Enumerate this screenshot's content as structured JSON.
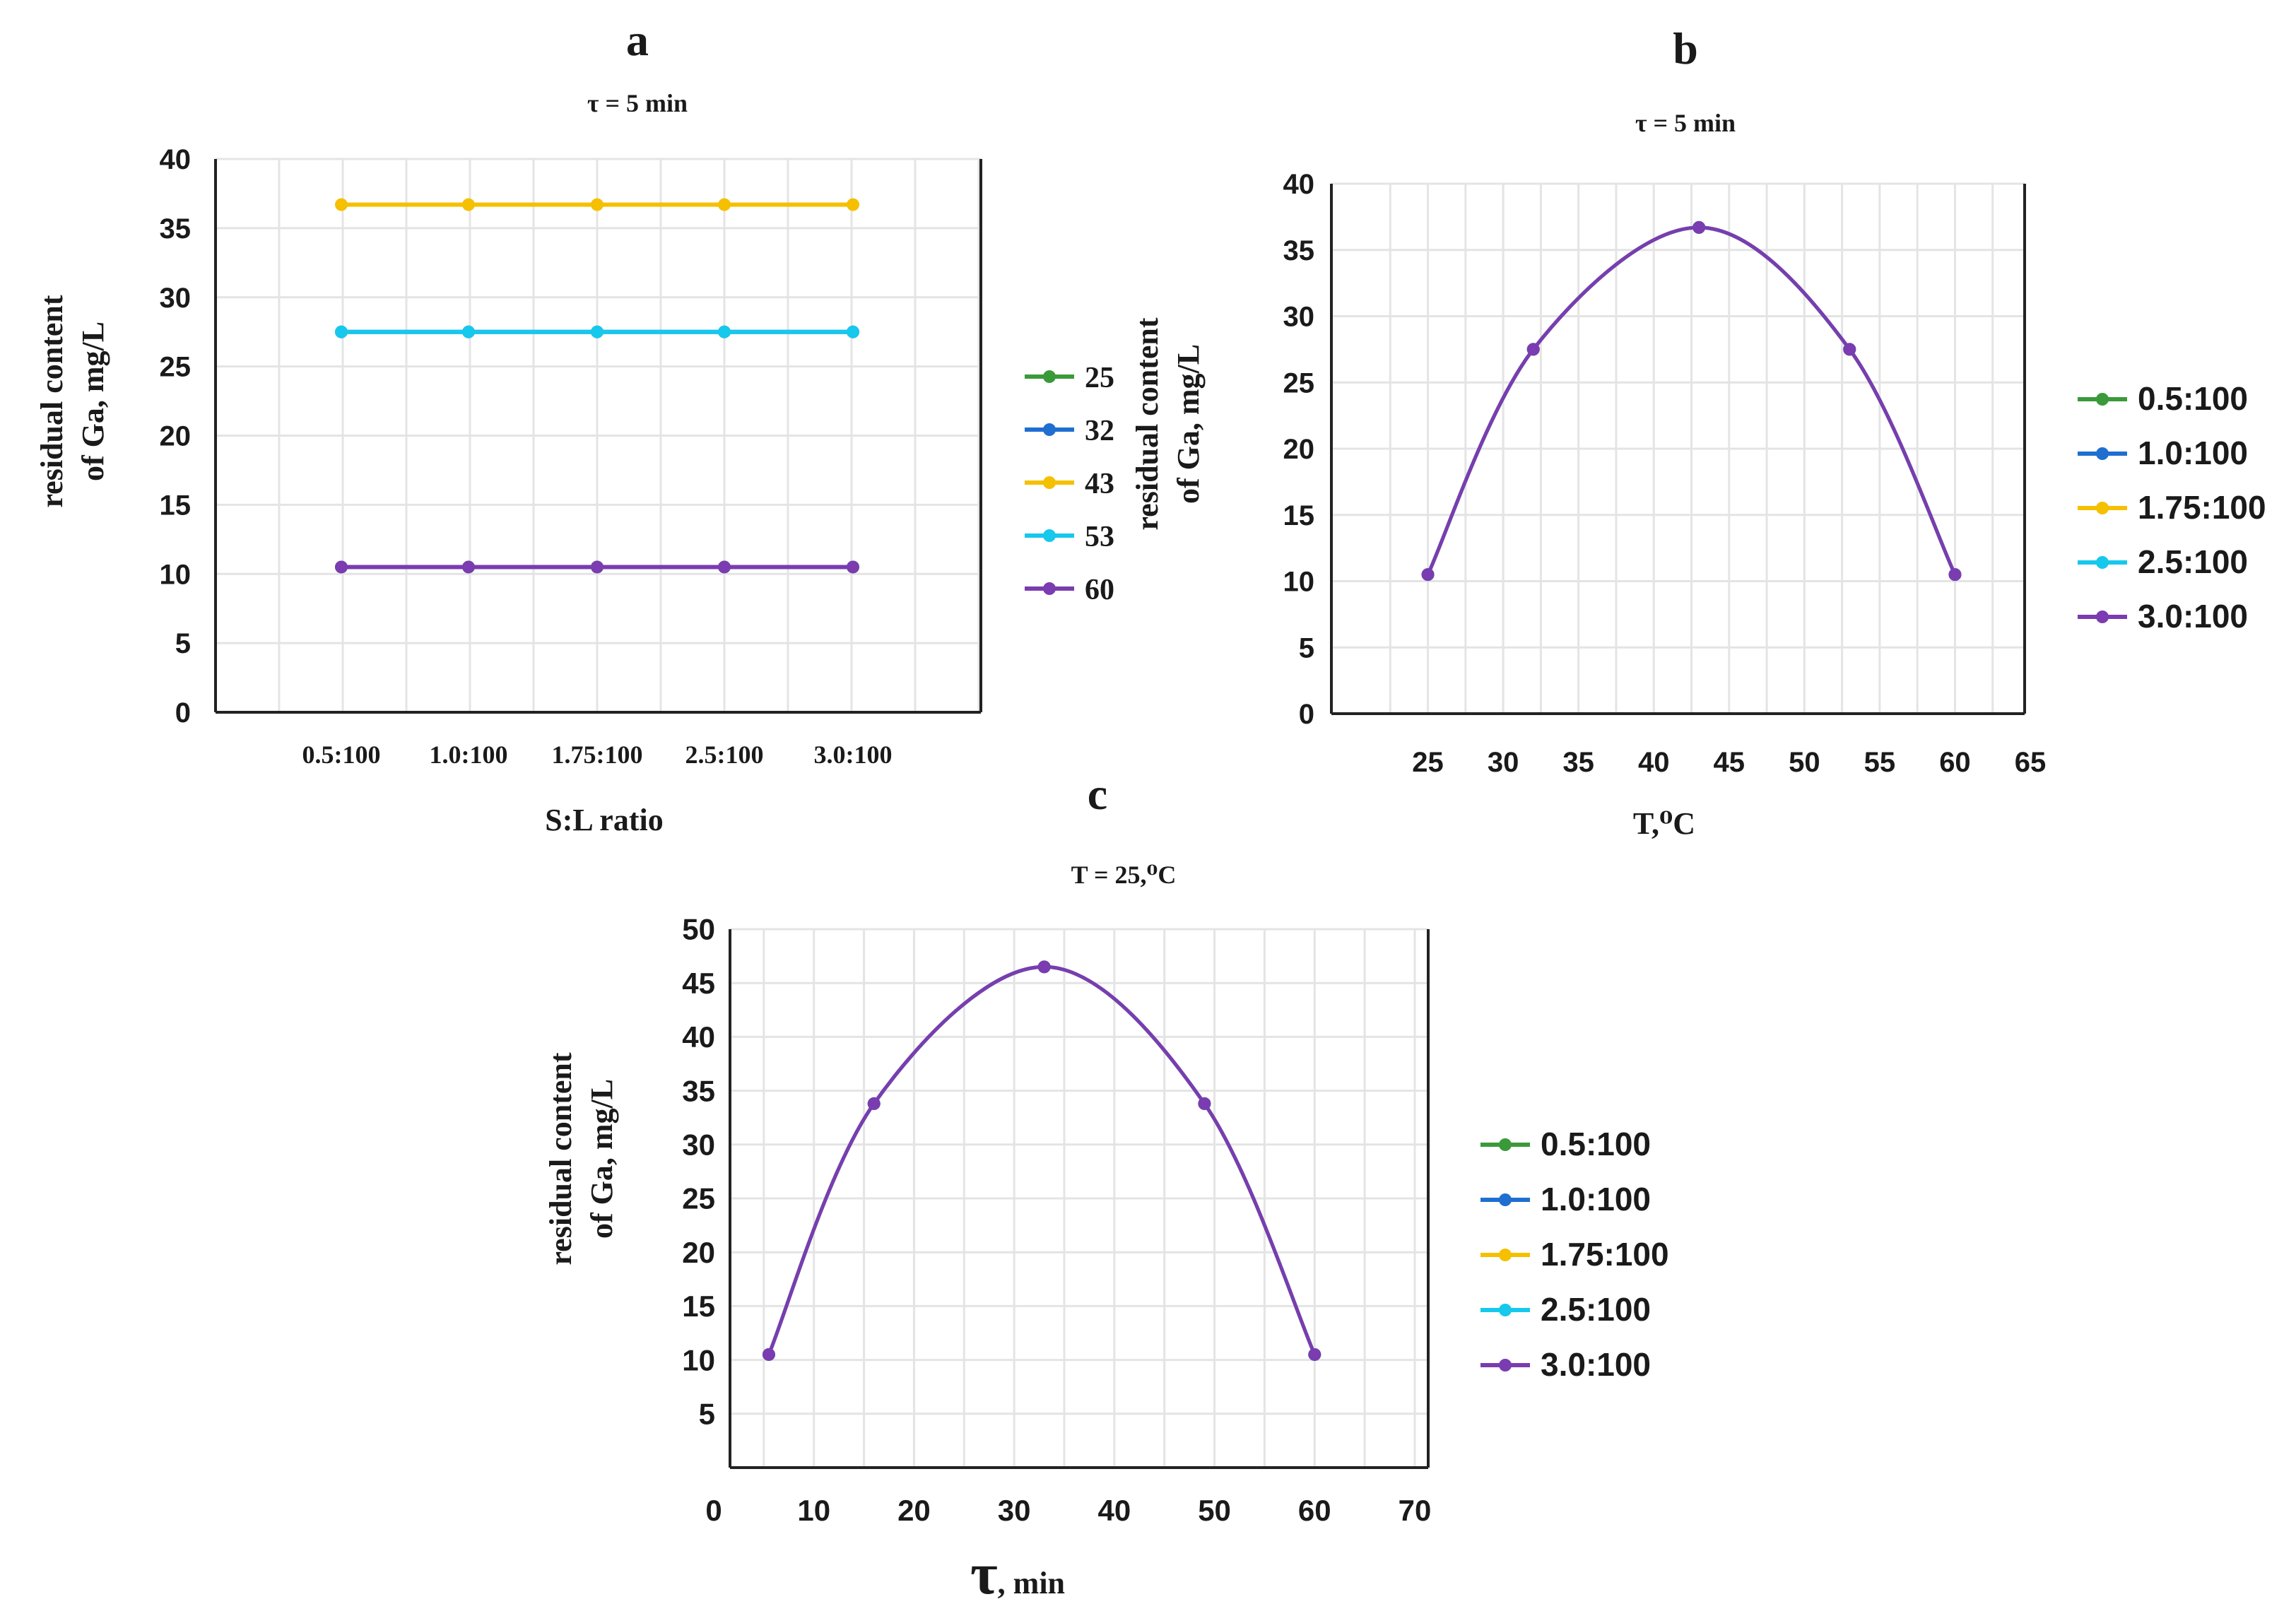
{
  "chart_data": [
    {
      "panel": "a",
      "type": "line",
      "subtitle": "τ = 5 min",
      "xlabel": "S:L ratio",
      "ylabel_line1": "residual content",
      "ylabel_line2": "of Ga, mg/L",
      "categories": [
        "0.5:100",
        "1.0:100",
        "1.75:100",
        "2.5:100",
        "3.0:100"
      ],
      "ylim": [
        0,
        40
      ],
      "yticks": [
        "0",
        "5",
        "10",
        "15",
        "20",
        "25",
        "30",
        "35",
        "40"
      ],
      "series": [
        {
          "name": "25",
          "color": "#3a9a3a",
          "values": [
            10.5,
            10.5,
            10.5,
            10.5,
            10.5
          ]
        },
        {
          "name": "32",
          "color": "#1f6fd1",
          "values": [
            27.5,
            27.5,
            27.5,
            27.5,
            27.5
          ]
        },
        {
          "name": "43",
          "color": "#f5c000",
          "values": [
            36.7,
            36.7,
            36.7,
            36.7,
            36.7
          ]
        },
        {
          "name": "53",
          "color": "#16c8ec",
          "values": [
            27.5,
            27.5,
            27.5,
            27.5,
            27.5
          ]
        },
        {
          "name": "60",
          "color": "#7a3cb0",
          "values": [
            10.5,
            10.5,
            10.5,
            10.5,
            10.5
          ]
        }
      ],
      "legend": "right"
    },
    {
      "panel": "b",
      "type": "line",
      "subtitle": "τ = 5 min",
      "xlabel": "T,⁰C",
      "ylabel_line1": "residual content",
      "ylabel_line2": "of Ga, mg/L",
      "xlim": [
        20,
        65
      ],
      "xticks": [
        "25",
        "30",
        "35",
        "40",
        "45",
        "50",
        "55",
        "60",
        "65"
      ],
      "ylim": [
        0,
        40
      ],
      "yticks": [
        "0",
        "5",
        "10",
        "15",
        "20",
        "25",
        "30",
        "35",
        "40"
      ],
      "series": [
        {
          "name": "0.5:100",
          "color": "#3a9a3a",
          "x": [
            25,
            32,
            43,
            53,
            60
          ],
          "values": [
            10.5,
            27.5,
            36.7,
            27.5,
            10.5
          ]
        },
        {
          "name": "1.0:100",
          "color": "#1f6fd1",
          "x": [
            25,
            32,
            43,
            53,
            60
          ],
          "values": [
            10.5,
            27.5,
            36.7,
            27.5,
            10.5
          ]
        },
        {
          "name": "1.75:100",
          "color": "#f5c000",
          "x": [
            25,
            32,
            43,
            53,
            60
          ],
          "values": [
            10.5,
            27.5,
            36.7,
            27.5,
            10.5
          ]
        },
        {
          "name": "2.5:100",
          "color": "#16c8ec",
          "x": [
            25,
            32,
            43,
            53,
            60
          ],
          "values": [
            10.5,
            27.5,
            36.7,
            27.5,
            10.5
          ]
        },
        {
          "name": "3.0:100",
          "color": "#7a3cb0",
          "x": [
            25,
            32,
            43,
            53,
            60
          ],
          "values": [
            10.5,
            27.5,
            36.7,
            27.5,
            10.5
          ]
        }
      ],
      "legend": "right"
    },
    {
      "panel": "c",
      "type": "line",
      "subtitle": "T = 25,⁰C",
      "xlabel_symbol": "τ",
      "xlabel_unit": ", min",
      "ylabel_line1": "residual content",
      "ylabel_line2": "of Ga, mg/L",
      "xlim": [
        0,
        70
      ],
      "xticks": [
        "0",
        "10",
        "20",
        "30",
        "40",
        "50",
        "60",
        "70"
      ],
      "ylim": [
        0,
        50
      ],
      "yticks": [
        "5",
        "10",
        "15",
        "20",
        "25",
        "30",
        "35",
        "40",
        "45",
        "50"
      ],
      "series": [
        {
          "name": "0.5:100",
          "color": "#3a9a3a",
          "x": [
            5.5,
            16,
            33,
            49,
            60
          ],
          "values": [
            10.5,
            33.8,
            46.5,
            33.8,
            10.5
          ]
        },
        {
          "name": "1.0:100",
          "color": "#1f6fd1",
          "x": [
            5.5,
            16,
            33,
            49,
            60
          ],
          "values": [
            10.5,
            33.8,
            46.5,
            33.8,
            10.5
          ]
        },
        {
          "name": "1.75:100",
          "color": "#f5c000",
          "x": [
            5.5,
            16,
            33,
            49,
            60
          ],
          "values": [
            10.5,
            33.8,
            46.5,
            33.8,
            10.5
          ]
        },
        {
          "name": "2.5:100",
          "color": "#16c8ec",
          "x": [
            5.5,
            16,
            33,
            49,
            60
          ],
          "values": [
            10.5,
            33.8,
            46.5,
            33.8,
            10.5
          ]
        },
        {
          "name": "3.0:100",
          "color": "#7a3cb0",
          "x": [
            5.5,
            16,
            33,
            49,
            60
          ],
          "values": [
            10.5,
            33.8,
            46.5,
            33.8,
            10.5
          ]
        }
      ],
      "legend": "right"
    }
  ]
}
